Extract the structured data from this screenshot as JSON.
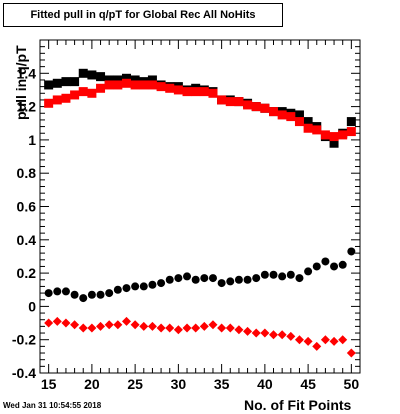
{
  "title": "Fitted pull in q/pT for Global Rec All NoHits",
  "xlabel": "No. of Fit Points",
  "ylabel": "pull in q/pT",
  "timestamp": "Wed Jan 31 10:54:55 2018",
  "chart_data": {
    "type": "scatter",
    "xlim": [
      14,
      51
    ],
    "ylim": [
      -0.4,
      1.6
    ],
    "xticks": [
      15,
      20,
      25,
      30,
      35,
      40,
      45,
      50
    ],
    "yticks": [
      -0.4,
      -0.2,
      0,
      0.2,
      0.4,
      0.6,
      0.8,
      1,
      1.2,
      1.4
    ],
    "ytick_labels": [
      "-0.4",
      "-0.2",
      "0",
      "0.2",
      "0.4",
      "0.6",
      "0.8",
      "1",
      "1.2",
      "1.4"
    ],
    "grid": false,
    "series": [
      {
        "marker": "square",
        "color": "#000000",
        "x": [
          15,
          16,
          17,
          18,
          19,
          20,
          21,
          22,
          23,
          24,
          25,
          26,
          27,
          28,
          29,
          30,
          31,
          32,
          33,
          34,
          35,
          36,
          37,
          38,
          39,
          40,
          41,
          42,
          43,
          44,
          45,
          46,
          47,
          48,
          49,
          50
        ],
        "y": [
          1.33,
          1.34,
          1.35,
          1.35,
          1.4,
          1.39,
          1.38,
          1.36,
          1.36,
          1.37,
          1.36,
          1.35,
          1.36,
          1.33,
          1.32,
          1.32,
          1.3,
          1.31,
          1.3,
          1.29,
          1.24,
          1.24,
          1.23,
          1.22,
          1.2,
          1.19,
          1.17,
          1.17,
          1.16,
          1.15,
          1.11,
          1.08,
          1.02,
          0.98,
          1.04,
          1.11
        ]
      },
      {
        "marker": "square",
        "color": "#ff0000",
        "x": [
          15,
          16,
          17,
          18,
          19,
          20,
          21,
          22,
          23,
          24,
          25,
          26,
          27,
          28,
          29,
          30,
          31,
          32,
          33,
          34,
          35,
          36,
          37,
          38,
          39,
          40,
          41,
          42,
          43,
          44,
          45,
          46,
          47,
          48,
          49,
          50
        ],
        "y": [
          1.22,
          1.24,
          1.25,
          1.27,
          1.29,
          1.28,
          1.31,
          1.33,
          1.33,
          1.34,
          1.33,
          1.33,
          1.33,
          1.32,
          1.31,
          1.3,
          1.29,
          1.29,
          1.29,
          1.28,
          1.24,
          1.23,
          1.23,
          1.21,
          1.2,
          1.19,
          1.17,
          1.15,
          1.14,
          1.11,
          1.07,
          1.06,
          1.03,
          1.02,
          1.03,
          1.05
        ]
      },
      {
        "marker": "circle",
        "color": "#000000",
        "x": [
          15,
          16,
          17,
          18,
          19,
          20,
          21,
          22,
          23,
          24,
          25,
          26,
          27,
          28,
          29,
          30,
          31,
          32,
          33,
          34,
          35,
          36,
          37,
          38,
          39,
          40,
          41,
          42,
          43,
          44,
          45,
          46,
          47,
          48,
          49,
          50
        ],
        "y": [
          0.08,
          0.09,
          0.09,
          0.07,
          0.05,
          0.07,
          0.07,
          0.08,
          0.1,
          0.11,
          0.12,
          0.12,
          0.13,
          0.14,
          0.16,
          0.17,
          0.18,
          0.16,
          0.17,
          0.17,
          0.14,
          0.15,
          0.16,
          0.16,
          0.17,
          0.19,
          0.19,
          0.18,
          0.19,
          0.17,
          0.21,
          0.24,
          0.27,
          0.24,
          0.25,
          0.33
        ]
      },
      {
        "marker": "diamond",
        "color": "#ff0000",
        "x": [
          15,
          16,
          17,
          18,
          19,
          20,
          21,
          22,
          23,
          24,
          25,
          26,
          27,
          28,
          29,
          30,
          31,
          32,
          33,
          34,
          35,
          36,
          37,
          38,
          39,
          40,
          41,
          42,
          43,
          44,
          45,
          46,
          47,
          48,
          49,
          50
        ],
        "y": [
          -0.1,
          -0.09,
          -0.1,
          -0.11,
          -0.13,
          -0.13,
          -0.12,
          -0.11,
          -0.11,
          -0.09,
          -0.11,
          -0.12,
          -0.12,
          -0.13,
          -0.13,
          -0.14,
          -0.13,
          -0.13,
          -0.12,
          -0.11,
          -0.13,
          -0.13,
          -0.14,
          -0.15,
          -0.16,
          -0.16,
          -0.17,
          -0.17,
          -0.18,
          -0.2,
          -0.21,
          -0.24,
          -0.2,
          -0.21,
          -0.2,
          -0.28
        ]
      }
    ]
  }
}
